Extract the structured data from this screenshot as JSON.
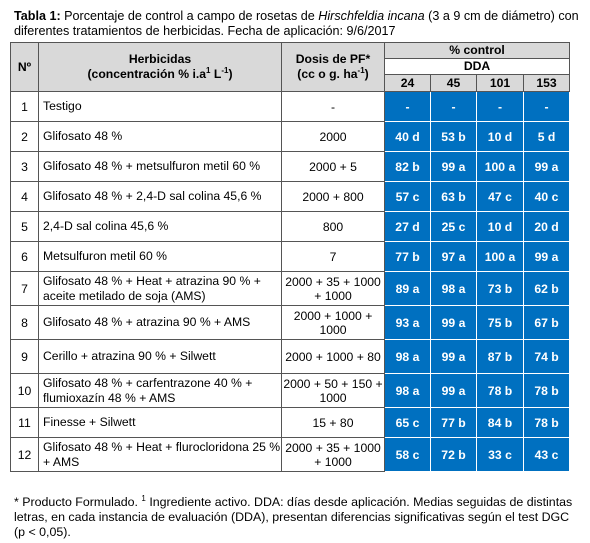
{
  "caption": {
    "label": "Tabla 1:",
    "text_before": " Porcentaje de control a campo de rosetas de ",
    "species": "Hirschfeldia incana",
    "text_after": " (3 a 9 cm de diámetro) con diferentes tratamientos de herbicidas. Fecha de aplicación: 9/6/2017"
  },
  "headers": {
    "no": "Nº",
    "herbicides_line1": "Herbicidas",
    "herbicides_line2_a": "(concentración % i.a",
    "herbicides_sup1": "1",
    "herbicides_line2_b": " L",
    "herbicides_sup2": "-1",
    "herbicides_line2_c": ")",
    "dose_line1": "Dosis de PF*",
    "dose_line2_a": "(cc o g. ha",
    "dose_sup": "-1",
    "dose_line2_b": ")",
    "pct_control": "% control",
    "dda": "DDA",
    "dda_cols": [
      "24",
      "45",
      "101",
      "153"
    ]
  },
  "rows": [
    {
      "no": "1",
      "herbicide": "Testigo",
      "dose": "-",
      "values": [
        "-",
        "-",
        "-",
        "-"
      ]
    },
    {
      "no": "2",
      "herbicide": "Glifosato  48 %",
      "dose": "2000",
      "values": [
        "40 d",
        "53 b",
        "10 d",
        "5 d"
      ]
    },
    {
      "no": "3",
      "herbicide": "Glifosato 48 % + metsulfuron metil 60 %",
      "dose": "2000 + 5",
      "values": [
        "82 b",
        "99 a",
        "100 a",
        "99 a"
      ]
    },
    {
      "no": "4",
      "herbicide": "Glifosato 48 % + 2,4-D sal colina 45,6 %",
      "dose": "2000 + 800",
      "values": [
        "57 c",
        "63 b",
        "47 c",
        "40 c"
      ]
    },
    {
      "no": "5",
      "herbicide": "2,4-D sal colina 45,6 %",
      "dose": "800",
      "values": [
        "27 d",
        "25 c",
        "10 d",
        "20 d"
      ]
    },
    {
      "no": "6",
      "herbicide": "Metsulfuron metil 60 %",
      "dose": "7",
      "values": [
        "77 b",
        "97 a",
        "100 a",
        "99 a"
      ]
    },
    {
      "no": "7",
      "herbicide": "Glifosato 48 % + Heat + atrazina 90 % + aceite metilado de soja (AMS)",
      "dose": "2000 + 35 + 1000 + 1000",
      "values": [
        "89 a",
        "98 a",
        "73 b",
        "62 b"
      ]
    },
    {
      "no": "8",
      "herbicide": "Glifosato 48 % + atrazina 90 % + AMS",
      "dose": "2000 + 1000 + 1000",
      "values": [
        "93 a",
        "99 a",
        "75 b",
        "67 b"
      ]
    },
    {
      "no": "9",
      "herbicide": "Cerillo + atrazina 90 % + Silwett",
      "dose": "2000 + 1000 + 80",
      "values": [
        "98 a",
        "99 a",
        "87 b",
        "74 b"
      ]
    },
    {
      "no": "10",
      "herbicide": "Glifosato 48 % + carfentrazone 40 % + flumioxazín 48 % + AMS",
      "dose": "2000 + 50 + 150 + 1000",
      "values": [
        "98 a",
        "99 a",
        "78 b",
        "78 b"
      ]
    },
    {
      "no": "11",
      "herbicide": "Finesse + Silwett",
      "dose": "15 + 80",
      "values": [
        "65 c",
        "77 b",
        "84 b",
        "78 b"
      ]
    },
    {
      "no": "12",
      "herbicide": "Glifosato 48 % + Heat + flurocloridona 25 % + AMS",
      "dose": "2000 + 35 + 1000 + 1000",
      "values": [
        "58 c",
        "72 b",
        "33 c",
        "43 c"
      ]
    }
  ],
  "footnote": {
    "part1": "*  Producto Formulado. ",
    "sup": "1",
    "part2": " Ingrediente activo. DDA: días desde aplicación. Medias seguidas de distintas letras, en cada instancia de evaluación (DDA), presentan diferencias significativas según el test DGC (p < 0,05)."
  },
  "colors": {
    "value_cell": "#0070c0",
    "header_bg": "#d9d9d9"
  }
}
